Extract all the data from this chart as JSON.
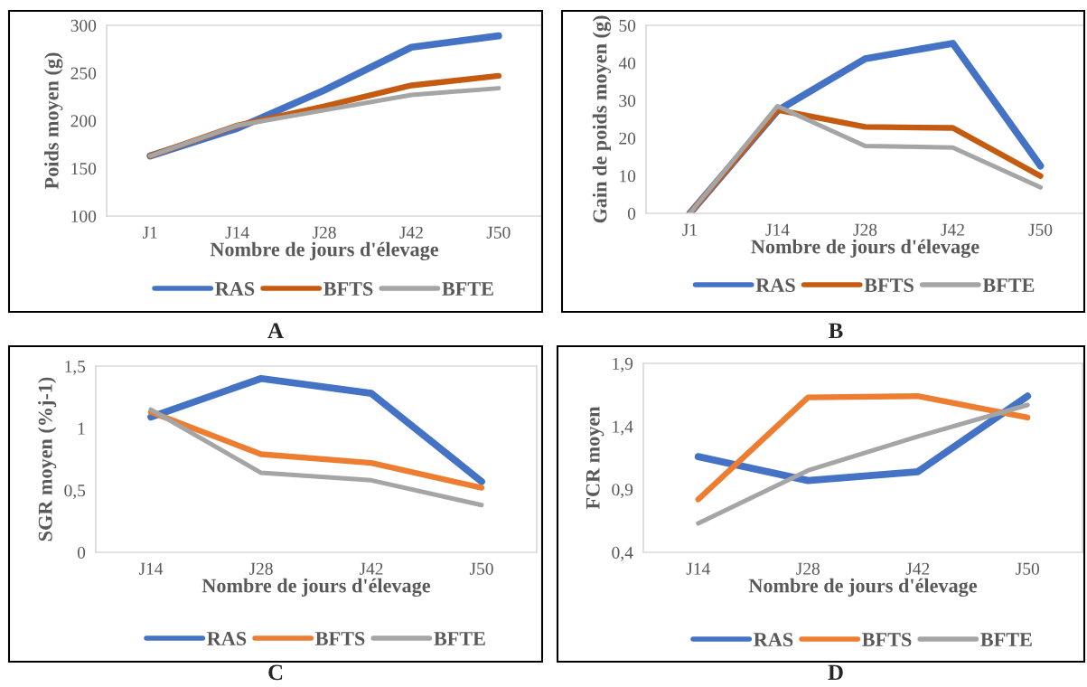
{
  "chart_data": [
    {
      "type": "line",
      "xlabel": "Nombre de jours d'élevage",
      "ylabel": "Poids moyen (g)",
      "categories": [
        "J1",
        "J14",
        "J28",
        "J42",
        "J50"
      ],
      "ylim": [
        100,
        300
      ],
      "yticks": [
        100,
        150,
        200,
        250,
        300
      ],
      "legend": "bottom",
      "grid": false,
      "marker": "none",
      "line_style": "solid",
      "annotations": [
        "A"
      ],
      "series": [
        {
          "name": "RAS",
          "color": "#4472c4",
          "values": [
            163,
            192,
            232,
            277,
            289
          ]
        },
        {
          "name": "BFTS",
          "color": "#c55a11",
          "values": [
            163,
            195,
            215,
            237,
            247
          ]
        },
        {
          "name": "BFTE",
          "color": "#a5a5a5",
          "values": [
            163,
            195,
            211,
            227,
            234
          ]
        }
      ]
    },
    {
      "type": "line",
      "xlabel": "Nombre de jours d'élevage",
      "ylabel": "Gain de poids moyen (g)",
      "categories": [
        "J1",
        "J14",
        "J28",
        "J42",
        "J50"
      ],
      "ylim": [
        0,
        50
      ],
      "yticks": [
        0,
        10,
        20,
        30,
        40,
        50
      ],
      "legend": "bottom",
      "grid": false,
      "marker": "none",
      "line_style": "solid",
      "annotations": [
        "B"
      ],
      "series": [
        {
          "name": "RAS",
          "color": "#4472c4",
          "values": [
            0,
            27.3,
            41.1,
            45.2,
            12.6
          ]
        },
        {
          "name": "BFTS",
          "color": "#c55a11",
          "values": [
            0,
            27.5,
            23,
            22.7,
            9.9
          ]
        },
        {
          "name": "BFTE",
          "color": "#a5a5a5",
          "values": [
            0,
            28.5,
            17.9,
            17.5,
            6.9
          ]
        }
      ]
    },
    {
      "type": "line",
      "xlabel": "Nombre de jours d'élevage",
      "ylabel": "SGR moyen (%j-1)",
      "categories": [
        "J14",
        "J28",
        "J42",
        "J50"
      ],
      "ylim": [
        0,
        1.5
      ],
      "yticks": [
        0,
        {
          "value": 0.5,
          "label": "0,5"
        },
        1,
        {
          "value": 1.5,
          "label": "1,5"
        }
      ],
      "legend": "bottom",
      "grid": false,
      "marker": "none",
      "line_style": "solid",
      "annotations": [
        "C"
      ],
      "series": [
        {
          "name": "RAS",
          "color": "#4472c4",
          "values": [
            1.09,
            1.4,
            1.28,
            0.57
          ]
        },
        {
          "name": "BFTS",
          "color": "#ed7d31",
          "values": [
            1.13,
            0.79,
            0.72,
            0.52
          ]
        },
        {
          "name": "BFTE",
          "color": "#a5a5a5",
          "values": [
            1.15,
            0.64,
            0.58,
            0.38
          ]
        }
      ]
    },
    {
      "type": "line",
      "xlabel": "Nombre de jours d'élevage",
      "ylabel": "FCR moyen",
      "categories": [
        "J14",
        "J28",
        "J42",
        "J50"
      ],
      "ylim": [
        0.4,
        1.9
      ],
      "yticks": [
        {
          "value": 0.4,
          "label": "0,4"
        },
        {
          "value": 0.9,
          "label": "0,9"
        },
        {
          "value": 1.4,
          "label": "1,4"
        },
        {
          "value": 1.9,
          "label": "1,9"
        }
      ],
      "legend": "bottom",
      "grid": false,
      "marker": "none",
      "line_style": "solid",
      "annotations": [
        "D"
      ],
      "series": [
        {
          "name": "RAS",
          "color": "#4472c4",
          "values": [
            1.16,
            0.97,
            1.04,
            1.64
          ]
        },
        {
          "name": "BFTS",
          "color": "#ed7d31",
          "values": [
            0.82,
            1.63,
            1.64,
            1.47
          ]
        },
        {
          "name": "BFTE",
          "color": "#a5a5a5",
          "values": [
            0.63,
            1.05,
            1.32,
            1.57
          ]
        }
      ]
    }
  ]
}
